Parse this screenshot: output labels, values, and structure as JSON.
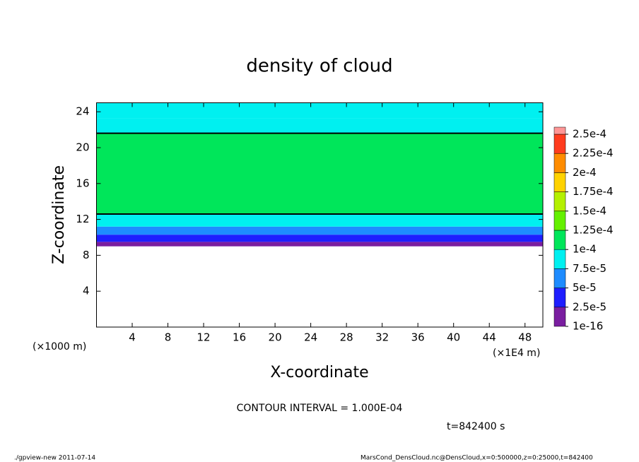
{
  "chart_data": {
    "type": "heatmap",
    "title": "density of cloud",
    "x_label": "X-coordinate",
    "y_label": "Z-coordinate",
    "x_unit": "(×1E4 m)",
    "y_unit": "(×1000 m)",
    "contour_note": "CONTOUR INTERVAL = 1.000E-04",
    "time_note": "t=842400 s",
    "footer_left": "./gpview-new  2011-07-14",
    "footer_right": "MarsCond_DensCloud.nc@DensCloud,x=0:500000,z=0:25000,t=842400",
    "xlim": [
      0,
      50
    ],
    "xticks": [
      4,
      8,
      12,
      16,
      20,
      24,
      28,
      32,
      36,
      40,
      44,
      48
    ],
    "ylim": [
      0,
      25
    ],
    "yticks": [
      4,
      8,
      12,
      16,
      20,
      24
    ],
    "z_bounds": [
      9,
      9.5,
      10.3,
      11.2,
      12.6,
      21.6,
      23.3,
      25
    ],
    "values": [
      1e-05,
      3.5e-05,
      6e-05,
      8.5e-05,
      0.00011,
      9e-05,
      8e-05
    ],
    "contour_level": 0.0001,
    "colorbar": {
      "levels": [
        1e-16,
        {
          "value": 2.5e-05,
          "label": "2.5e-5"
        },
        {
          "value": 5e-05,
          "label": "5e-5"
        },
        {
          "value": 7.5e-05,
          "label": "7.5e-5"
        },
        {
          "value": 0.0001,
          "label": "1e-4"
        },
        {
          "value": 0.000125,
          "label": "1.25e-4"
        },
        {
          "value": 0.00015,
          "label": "1.5e-4"
        },
        {
          "value": 0.000175,
          "label": "1.75e-4"
        },
        {
          "value": 0.0002,
          "label": "2e-4"
        },
        {
          "value": 0.000225,
          "label": "2.25e-4"
        },
        {
          "value": 0.00025,
          "label": "2.5e-4"
        }
      ],
      "colors": [
        "#7a1ea0",
        "#1e1eff",
        "#1e8cff",
        "#00f0f0",
        "#00e65a",
        "#64f000",
        "#b4f000",
        "#ffd200",
        "#ff8c00",
        "#ff3c1e"
      ],
      "over_color": "#ff9696"
    }
  }
}
